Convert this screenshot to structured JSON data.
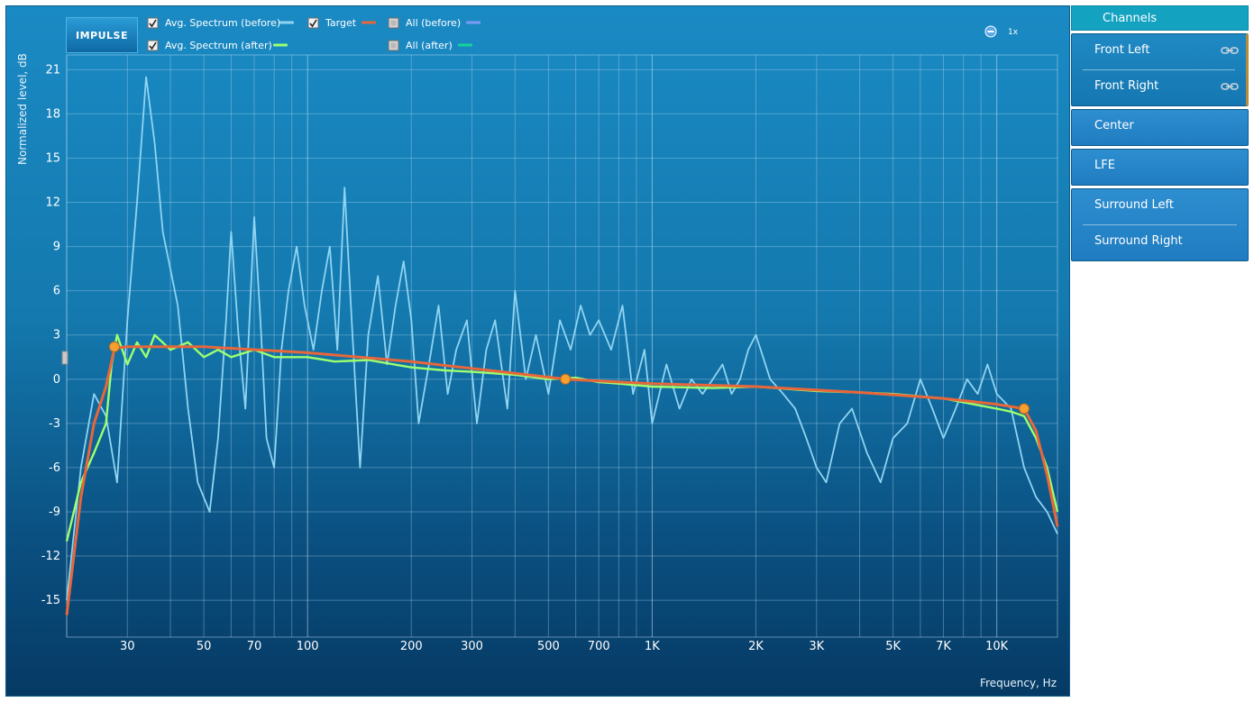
{
  "legend": [
    {
      "label": "Avg. Spectrum (before)",
      "checked": true,
      "color": "#8fd4f2"
    },
    {
      "label": "Avg. Spectrum (after)",
      "checked": true,
      "color": "#9cff70"
    },
    {
      "label": "Target",
      "checked": true,
      "color": "#e8663a"
    },
    {
      "label": "All (before)",
      "checked": false,
      "color": "#7a9cf5"
    },
    {
      "label": "All (after)",
      "checked": false,
      "color": "#13d39b"
    }
  ],
  "logo_text": "IMPULSE",
  "zoom_label": "1x",
  "channels": {
    "header": "Channels",
    "groups": [
      {
        "items": [
          "Front Left",
          "Front Right"
        ],
        "selected": true,
        "linked": true
      },
      {
        "items": [
          "Center"
        ],
        "selected": false,
        "linked": false
      },
      {
        "items": [
          "LFE"
        ],
        "selected": false,
        "linked": false
      },
      {
        "items": [
          "Surround Left",
          "Surround Right"
        ],
        "selected": false,
        "linked": false
      }
    ]
  },
  "chart_data": {
    "type": "line",
    "xlabel": "Frequency, Hz",
    "ylabel": "Normalized level, dB",
    "xscale": "log",
    "xlim": [
      20,
      15000
    ],
    "ylim": [
      -17.5,
      22
    ],
    "xticks": [
      {
        "value": 30,
        "label": "30"
      },
      {
        "value": 50,
        "label": "50"
      },
      {
        "value": 70,
        "label": "70"
      },
      {
        "value": 100,
        "label": "100"
      },
      {
        "value": 200,
        "label": "200"
      },
      {
        "value": 300,
        "label": "300"
      },
      {
        "value": 500,
        "label": "500"
      },
      {
        "value": 700,
        "label": "700"
      },
      {
        "value": 1000,
        "label": "1K"
      },
      {
        "value": 2000,
        "label": "2K"
      },
      {
        "value": 3000,
        "label": "3K"
      },
      {
        "value": 5000,
        "label": "5K"
      },
      {
        "value": 7000,
        "label": "7K"
      },
      {
        "value": 10000,
        "label": "10K"
      }
    ],
    "yticks": [
      21,
      18,
      15,
      12,
      9,
      6,
      3,
      0,
      -3,
      -6,
      -9,
      -12,
      -15
    ],
    "grid": true,
    "series": [
      {
        "name": "Avg. Spectrum (before)",
        "color": "#8fd4f2",
        "points": [
          [
            20,
            -15
          ],
          [
            22,
            -6
          ],
          [
            24,
            -1
          ],
          [
            26,
            -2.5
          ],
          [
            28,
            -7
          ],
          [
            30,
            4
          ],
          [
            32,
            12
          ],
          [
            34,
            20.5
          ],
          [
            36,
            16
          ],
          [
            38,
            10
          ],
          [
            42,
            5
          ],
          [
            45,
            -2
          ],
          [
            48,
            -7
          ],
          [
            52,
            -9
          ],
          [
            55,
            -4
          ],
          [
            58,
            4
          ],
          [
            60,
            10
          ],
          [
            63,
            3
          ],
          [
            66,
            -2
          ],
          [
            70,
            11
          ],
          [
            73,
            4
          ],
          [
            76,
            -4
          ],
          [
            80,
            -6
          ],
          [
            84,
            2
          ],
          [
            88,
            6
          ],
          [
            93,
            9
          ],
          [
            98,
            5
          ],
          [
            104,
            2
          ],
          [
            110,
            6
          ],
          [
            116,
            9
          ],
          [
            122,
            2
          ],
          [
            128,
            13
          ],
          [
            135,
            3
          ],
          [
            142,
            -6
          ],
          [
            150,
            3
          ],
          [
            160,
            7
          ],
          [
            170,
            1
          ],
          [
            180,
            5
          ],
          [
            190,
            8
          ],
          [
            200,
            4
          ],
          [
            210,
            -3
          ],
          [
            225,
            1
          ],
          [
            240,
            5
          ],
          [
            255,
            -1
          ],
          [
            270,
            2
          ],
          [
            290,
            4
          ],
          [
            310,
            -3
          ],
          [
            330,
            2
          ],
          [
            350,
            4
          ],
          [
            380,
            -2
          ],
          [
            400,
            6
          ],
          [
            430,
            0
          ],
          [
            460,
            3
          ],
          [
            500,
            -1
          ],
          [
            540,
            4
          ],
          [
            580,
            2
          ],
          [
            620,
            5
          ],
          [
            660,
            3
          ],
          [
            700,
            4
          ],
          [
            760,
            2
          ],
          [
            820,
            5
          ],
          [
            880,
            -1
          ],
          [
            950,
            2
          ],
          [
            1000,
            -3
          ],
          [
            1100,
            1
          ],
          [
            1200,
            -2
          ],
          [
            1300,
            0
          ],
          [
            1400,
            -1
          ],
          [
            1500,
            0
          ],
          [
            1600,
            1
          ],
          [
            1700,
            -1
          ],
          [
            1800,
            0
          ],
          [
            1900,
            2
          ],
          [
            2000,
            3
          ],
          [
            2200,
            0
          ],
          [
            2400,
            -1
          ],
          [
            2600,
            -2
          ],
          [
            2800,
            -4
          ],
          [
            3000,
            -6
          ],
          [
            3200,
            -7
          ],
          [
            3500,
            -3
          ],
          [
            3800,
            -2
          ],
          [
            4200,
            -5
          ],
          [
            4600,
            -7
          ],
          [
            5000,
            -4
          ],
          [
            5500,
            -3
          ],
          [
            6000,
            0
          ],
          [
            6500,
            -2
          ],
          [
            7000,
            -4
          ],
          [
            7600,
            -2
          ],
          [
            8200,
            0
          ],
          [
            8800,
            -1
          ],
          [
            9400,
            1
          ],
          [
            10000,
            -1
          ],
          [
            11000,
            -2
          ],
          [
            12000,
            -6
          ],
          [
            13000,
            -8
          ],
          [
            14000,
            -9
          ],
          [
            15000,
            -10.5
          ]
        ]
      },
      {
        "name": "Avg. Spectrum (after)",
        "color": "#9cff70",
        "points": [
          [
            20,
            -11
          ],
          [
            22,
            -7
          ],
          [
            24,
            -5
          ],
          [
            26,
            -3
          ],
          [
            27,
            1
          ],
          [
            28,
            3
          ],
          [
            30,
            1
          ],
          [
            32,
            2.5
          ],
          [
            34,
            1.5
          ],
          [
            36,
            3
          ],
          [
            40,
            2
          ],
          [
            45,
            2.5
          ],
          [
            50,
            1.5
          ],
          [
            55,
            2
          ],
          [
            60,
            1.5
          ],
          [
            70,
            2
          ],
          [
            80,
            1.5
          ],
          [
            100,
            1.5
          ],
          [
            120,
            1.2
          ],
          [
            150,
            1.3
          ],
          [
            200,
            0.8
          ],
          [
            250,
            0.6
          ],
          [
            300,
            0.5
          ],
          [
            400,
            0.3
          ],
          [
            500,
            0
          ],
          [
            600,
            0.1
          ],
          [
            700,
            -0.2
          ],
          [
            800,
            -0.3
          ],
          [
            1000,
            -0.5
          ],
          [
            1500,
            -0.6
          ],
          [
            2000,
            -0.5
          ],
          [
            3000,
            -0.8
          ],
          [
            4000,
            -0.9
          ],
          [
            5000,
            -1
          ],
          [
            7000,
            -1.3
          ],
          [
            9000,
            -1.8
          ],
          [
            10000,
            -2
          ],
          [
            11000,
            -2.2
          ],
          [
            12000,
            -2.5
          ],
          [
            13000,
            -4
          ],
          [
            14000,
            -6
          ],
          [
            15000,
            -9
          ]
        ]
      },
      {
        "name": "Target",
        "color": "#e8663a",
        "points": [
          [
            20,
            -16
          ],
          [
            22,
            -8
          ],
          [
            24,
            -3
          ],
          [
            26,
            -0.5
          ],
          [
            27.5,
            2.1
          ],
          [
            30,
            2.2
          ],
          [
            50,
            2.2
          ],
          [
            100,
            1.8
          ],
          [
            200,
            1.2
          ],
          [
            400,
            0.4
          ],
          [
            560,
            0
          ],
          [
            1000,
            -0.3
          ],
          [
            2000,
            -0.5
          ],
          [
            4000,
            -0.9
          ],
          [
            7000,
            -1.3
          ],
          [
            10000,
            -1.7
          ],
          [
            12000,
            -2
          ],
          [
            13000,
            -3.5
          ],
          [
            14000,
            -6.5
          ],
          [
            15000,
            -10
          ]
        ]
      }
    ],
    "control_points": [
      [
        27.5,
        2.2
      ],
      [
        560,
        0
      ],
      [
        12000,
        -2
      ]
    ]
  }
}
